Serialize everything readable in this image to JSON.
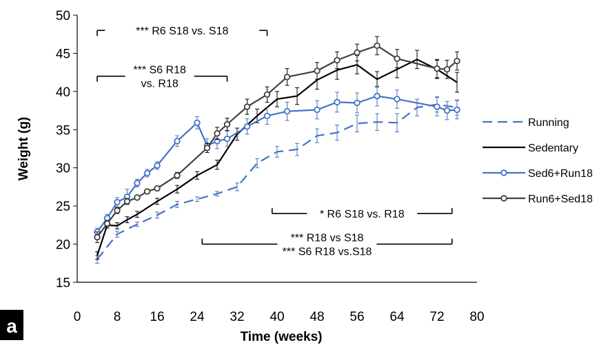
{
  "chart_data": {
    "type": "line",
    "panel_label": "a",
    "xlabel": "Time (weeks)",
    "ylabel": "Weight (g)",
    "xlim": [
      0,
      80
    ],
    "ylim": [
      15,
      50
    ],
    "xticks": [
      0,
      8,
      16,
      24,
      32,
      40,
      48,
      56,
      64,
      72,
      80
    ],
    "yticks": [
      15,
      20,
      25,
      30,
      35,
      40,
      45,
      50
    ],
    "grid": false,
    "legend_position": "right",
    "series": [
      {
        "name": "Running",
        "style": "dashed",
        "color": "#4472C4",
        "x": [
          4,
          8,
          12,
          16,
          20,
          24,
          28,
          32,
          36,
          40,
          44,
          48,
          52,
          56,
          60,
          64,
          68,
          72,
          76
        ],
        "y": [
          18.0,
          21.3,
          22.6,
          23.8,
          25.2,
          25.9,
          26.6,
          27.5,
          30.6,
          32.1,
          32.4,
          34.2,
          34.6,
          35.8,
          36.0,
          35.9,
          37.9,
          38.3,
          37.9
        ],
        "err": [
          0.5,
          0.4,
          0.3,
          0.4,
          0.4,
          0.3,
          0.3,
          0.5,
          0.6,
          0.7,
          0.8,
          0.9,
          1.0,
          1.1,
          1.1,
          1.2,
          1.1,
          1.0,
          1.0
        ]
      },
      {
        "name": "Sedentary",
        "style": "solid",
        "color": "#000000",
        "x": [
          4,
          6,
          8,
          10,
          12,
          16,
          20,
          24,
          28,
          32,
          36,
          40,
          44,
          48,
          52,
          56,
          60,
          64,
          68,
          72,
          76
        ],
        "y": [
          18.5,
          22.5,
          22.4,
          23.2,
          23.9,
          25.6,
          27.2,
          29.0,
          30.4,
          34.4,
          36.8,
          39.0,
          39.4,
          41.5,
          42.8,
          43.5,
          41.6,
          42.9,
          44.2,
          42.9,
          41.2
        ],
        "err": [
          0.5,
          0.4,
          0.4,
          0.4,
          0.4,
          0.4,
          0.5,
          0.5,
          0.6,
          0.8,
          0.9,
          1.0,
          1.1,
          1.2,
          1.2,
          1.2,
          1.0,
          1.1,
          1.2,
          1.2,
          1.3
        ]
      },
      {
        "name": "Sed6+Run18",
        "style": "circle-markers",
        "color": "#4472C4",
        "x": [
          4,
          6,
          8,
          10,
          12,
          14,
          16,
          20,
          24,
          26,
          28,
          30,
          34,
          38,
          42,
          48,
          52,
          56,
          60,
          64,
          72,
          74,
          76
        ],
        "y": [
          21.6,
          23.4,
          25.5,
          26.2,
          28.0,
          29.3,
          30.3,
          33.5,
          35.9,
          32.9,
          33.5,
          33.8,
          35.4,
          36.8,
          37.4,
          37.6,
          38.6,
          38.5,
          39.4,
          39.0,
          38.0,
          37.5,
          37.6
        ],
        "err": [
          0.5,
          0.5,
          0.6,
          1.0,
          0.5,
          0.5,
          0.5,
          0.7,
          0.8,
          0.9,
          1.0,
          1.0,
          1.0,
          1.1,
          1.2,
          1.2,
          1.3,
          1.3,
          1.3,
          1.2,
          1.2,
          1.2,
          1.2
        ]
      },
      {
        "name": "Run6+Sed18",
        "style": "circle-markers",
        "color": "#404040",
        "x": [
          4,
          6,
          8,
          10,
          12,
          14,
          16,
          20,
          26,
          28,
          30,
          34,
          38,
          42,
          48,
          52,
          56,
          60,
          64,
          72,
          74,
          76
        ],
        "y": [
          20.9,
          22.7,
          24.4,
          25.6,
          26.1,
          26.9,
          27.3,
          29.0,
          32.6,
          34.5,
          35.7,
          38.0,
          39.6,
          41.9,
          42.7,
          44.1,
          45.1,
          46.0,
          44.3,
          43.0,
          42.9,
          44.0
        ],
        "err": [
          0.7,
          0.4,
          0.4,
          0.4,
          0.3,
          0.3,
          0.3,
          0.4,
          0.6,
          0.8,
          0.8,
          1.0,
          1.0,
          1.1,
          1.1,
          1.1,
          1.1,
          1.2,
          1.2,
          1.2,
          1.2,
          1.2
        ]
      }
    ],
    "annotations": [
      {
        "id": "ann1",
        "text": "*** R6 S18 vs. S18",
        "x_from": 4,
        "x_to": 38,
        "y": 48.0,
        "bracket": "down",
        "text_x": 21,
        "text_y": 48.0
      },
      {
        "id": "ann2",
        "text": "*** S6 R18",
        "text2": "vs. R18",
        "x_from": 4,
        "x_to": 30,
        "y": 42.0,
        "bracket": "down",
        "text_x": 16.5,
        "text_y": 42.0
      },
      {
        "id": "ann3",
        "text": "* R6 S18 vs. R18",
        "x_from": 39,
        "x_to": 75,
        "y": 24.0,
        "bracket": "up",
        "text_x": 57,
        "text_y": 24.0
      },
      {
        "id": "ann4",
        "text": "*** R18 vs S18",
        "text2": "*** S6 R18 vs.S18",
        "x_from": 25,
        "x_to": 75,
        "y": 20.0,
        "bracket": "up",
        "text_x": 50,
        "text_y": 20.0
      }
    ]
  }
}
